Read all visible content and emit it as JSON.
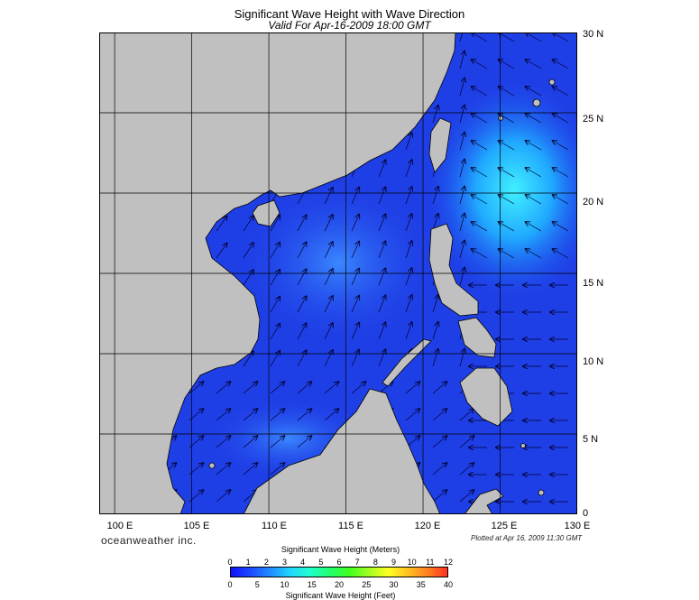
{
  "header": {
    "title": "Significant Wave Height with Wave Direction",
    "subtitle": "Valid For Apr-16-2009 18:00 GMT"
  },
  "map": {
    "lon_range": [
      99,
      130
    ],
    "lat_range": [
      0,
      30
    ],
    "lat_labels": [
      "30 N",
      "25 N",
      "20 N",
      "15 N",
      "10 N",
      "5 N",
      "0"
    ],
    "lon_labels": [
      "100 E",
      "105 E",
      "110 E",
      "115 E",
      "120 E",
      "125 E",
      "130 E"
    ],
    "land_color": "#c0c0c0",
    "sea_color": "#1f3fe6",
    "grid_color": "#000000",
    "arrow_color": "#00002a"
  },
  "footer": {
    "brand": "oceanweather inc.",
    "plotted": "Plotted at Apr 16, 2009 11:30 GMT"
  },
  "legend": {
    "title_meters": "Significant Wave Height (Meters)",
    "title_feet": "Significant Wave Height (Feet)",
    "meters_ticks": [
      "0",
      "1",
      "2",
      "3",
      "4",
      "5",
      "6",
      "7",
      "8",
      "9",
      "10",
      "11",
      "12"
    ],
    "feet_ticks": [
      "0",
      "5",
      "10",
      "15",
      "20",
      "25",
      "30",
      "35",
      "40"
    ],
    "colors": [
      "#1010ff",
      "#1c4cff",
      "#208cff",
      "#20d4ff",
      "#20ffd0",
      "#20ff70",
      "#40ff20",
      "#a0ff20",
      "#ffff20",
      "#ffc020",
      "#ff8020",
      "#ff3020"
    ]
  }
}
